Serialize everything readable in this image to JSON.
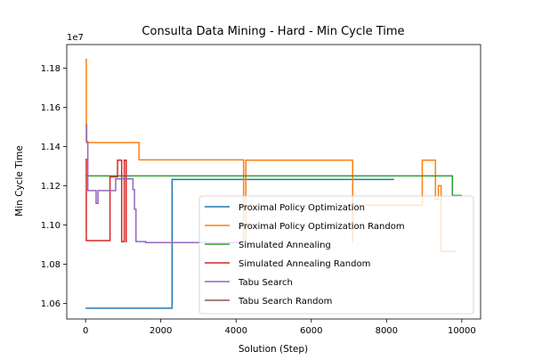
{
  "chart_data": {
    "type": "line",
    "title": "Consulta Data Mining - Hard - Min Cycle Time",
    "xlabel": "Solution (Step)",
    "ylabel": "Min Cycle Time",
    "y_offset_label": "1e7",
    "xlim": [
      -500,
      10500
    ],
    "ylim": [
      10520000,
      11920000
    ],
    "x_ticks": [
      0,
      2000,
      4000,
      6000,
      8000,
      10000
    ],
    "x_tick_labels": [
      "0",
      "2000",
      "4000",
      "6000",
      "8000",
      "10000"
    ],
    "y_ticks": [
      10600000,
      10800000,
      11000000,
      11200000,
      11400000,
      11600000,
      11800000
    ],
    "y_tick_labels": [
      "1.06",
      "1.08",
      "1.10",
      "1.12",
      "1.14",
      "1.16",
      "1.18"
    ],
    "legend_position": "lower-right",
    "series": [
      {
        "name": "Proximal Policy Optimization",
        "color": "#1f77b4",
        "points": [
          [
            0,
            10575000
          ],
          [
            2300,
            10575000
          ],
          [
            2300,
            11232000
          ],
          [
            8200,
            11232000
          ]
        ]
      },
      {
        "name": "Proximal Policy Optimization Random",
        "color": "#ff7f0e",
        "points": [
          [
            0,
            11845000
          ],
          [
            20,
            11845000
          ],
          [
            20,
            11425000
          ],
          [
            60,
            11425000
          ],
          [
            60,
            11420000
          ],
          [
            1420,
            11420000
          ],
          [
            1420,
            11332000
          ],
          [
            4200,
            11332000
          ],
          [
            4200,
            11310000
          ],
          [
            4200,
            10910000
          ],
          [
            4260,
            10910000
          ],
          [
            4260,
            11330000
          ],
          [
            7100,
            11330000
          ],
          [
            7100,
            10910000
          ],
          [
            7100,
            11100000
          ],
          [
            8950,
            11100000
          ],
          [
            8950,
            11330000
          ],
          [
            9300,
            11330000
          ],
          [
            9300,
            11130000
          ],
          [
            9380,
            11130000
          ],
          [
            9380,
            11200000
          ],
          [
            9450,
            11200000
          ],
          [
            9450,
            10865000
          ],
          [
            9850,
            10865000
          ]
        ]
      },
      {
        "name": "Simulated Annealing",
        "color": "#2ca02c",
        "points": [
          [
            0,
            11250000
          ],
          [
            9750,
            11250000
          ],
          [
            9750,
            11150000
          ],
          [
            10000,
            11150000
          ]
        ]
      },
      {
        "name": "Simulated Annealing Random",
        "color": "#d62728",
        "points": [
          [
            0,
            11335000
          ],
          [
            20,
            11335000
          ],
          [
            20,
            10920000
          ],
          [
            650,
            10920000
          ],
          [
            650,
            11245000
          ],
          [
            850,
            11245000
          ],
          [
            850,
            11330000
          ],
          [
            960,
            11330000
          ],
          [
            960,
            10915000
          ],
          [
            1030,
            10915000
          ],
          [
            1030,
            11330000
          ],
          [
            1080,
            11330000
          ],
          [
            1080,
            10915000
          ],
          [
            1100,
            10915000
          ]
        ]
      },
      {
        "name": "Tabu Search",
        "color": "#9467bd",
        "points": [
          [
            0,
            11510000
          ],
          [
            30,
            11510000
          ],
          [
            30,
            11420000
          ],
          [
            60,
            11420000
          ],
          [
            60,
            11175000
          ],
          [
            280,
            11175000
          ],
          [
            280,
            11110000
          ],
          [
            330,
            11110000
          ],
          [
            330,
            11175000
          ],
          [
            800,
            11175000
          ],
          [
            800,
            11235000
          ],
          [
            1260,
            11235000
          ],
          [
            1260,
            11180000
          ],
          [
            1300,
            11180000
          ],
          [
            1300,
            11080000
          ],
          [
            1340,
            11080000
          ],
          [
            1340,
            10915000
          ],
          [
            1600,
            10915000
          ],
          [
            1600,
            10910000
          ],
          [
            3300,
            10910000
          ],
          [
            3300,
            10910000
          ],
          [
            4300,
            10910000
          ]
        ]
      },
      {
        "name": "Tabu Search Random",
        "color": "#8c564b",
        "points": []
      }
    ]
  }
}
